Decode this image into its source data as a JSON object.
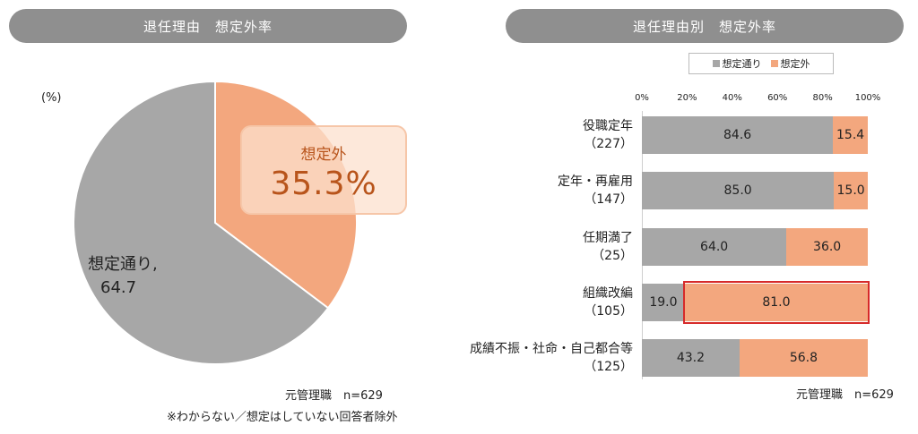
{
  "left": {
    "title": "退任理由　想定外率",
    "unit_label": "(%)",
    "callout_label": "想定外",
    "callout_value": "35.3%",
    "gray_label_line1": "想定通り,",
    "gray_label_line2": "64.7",
    "note_n": "元管理職　n=629",
    "note_exclusion": "※わからない／想定はしていない回答者除外"
  },
  "right": {
    "title": "退任理由別　想定外率",
    "note_n": "元管理職　n=629"
  },
  "colors": {
    "expected": "#a7a7a7",
    "unexpected": "#f3a77e",
    "highlight": "#d62a2a"
  },
  "chart_data": [
    {
      "type": "pie",
      "slices": [
        {
          "name": "想定外",
          "value": 35.3
        },
        {
          "name": "想定通り",
          "value": 64.7
        }
      ]
    },
    {
      "type": "bar",
      "orientation": "horizontal-stacked",
      "legend": [
        "想定通り",
        "想定外"
      ],
      "legend_position": "top",
      "xticks": [
        "0%",
        "20%",
        "40%",
        "60%",
        "80%",
        "100%"
      ],
      "xlim": [
        0,
        100
      ],
      "categories": [
        {
          "name": "役職定年",
          "count": "（227）"
        },
        {
          "name": "定年・再雇用",
          "count": "（147）"
        },
        {
          "name": "任期満了",
          "count": "（25）"
        },
        {
          "name": "組織改編",
          "count": "（105）"
        },
        {
          "name": "成績不振・社命・自己都合等",
          "count": "（125）"
        }
      ],
      "series": [
        {
          "name": "想定通り",
          "values": [
            84.6,
            85.0,
            64.0,
            19.0,
            43.2
          ],
          "labels": [
            "84.6",
            "85.0",
            "64.0",
            "19.0",
            "43.2"
          ]
        },
        {
          "name": "想定外",
          "values": [
            15.4,
            15.0,
            36.0,
            81.0,
            56.8
          ],
          "labels": [
            "15.4",
            "15.0",
            "36.0",
            "81.0",
            "56.8"
          ]
        }
      ],
      "highlighted_category": "組織改編"
    }
  ]
}
